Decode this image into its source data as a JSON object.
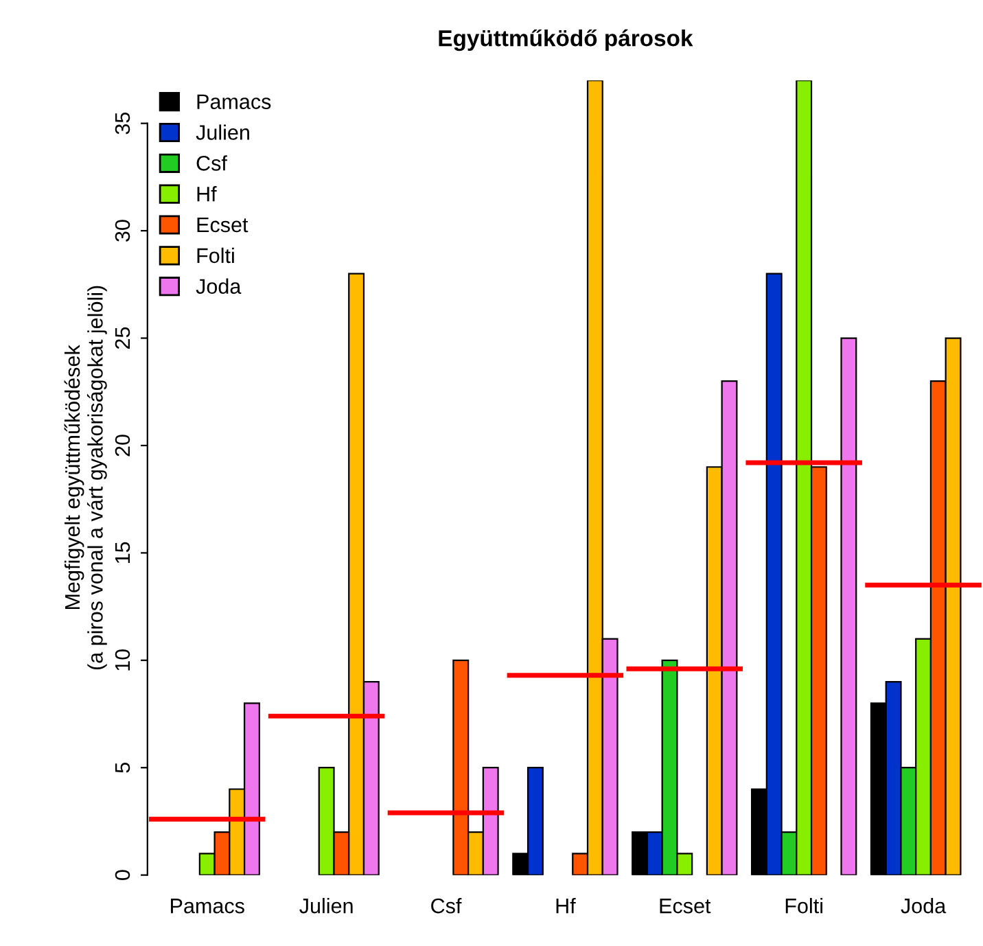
{
  "chart_data": {
    "type": "bar",
    "title": "Együttműködő párosok",
    "ylabel": "Megfigyelt együttműködések\n(a piros vonal a várt gyakoriságokat jelöli)",
    "categories": [
      "Pamacs",
      "Julien",
      "Csf",
      "Hf",
      "Ecset",
      "Folti",
      "Joda"
    ],
    "series": [
      {
        "name": "Pamacs",
        "color": "#000000",
        "values": [
          0,
          0,
          0,
          1,
          2,
          4,
          8
        ]
      },
      {
        "name": "Julien",
        "color": "#0033cc",
        "values": [
          0,
          0,
          0,
          5,
          2,
          28,
          9
        ]
      },
      {
        "name": "Csf",
        "color": "#22cc22",
        "values": [
          0,
          0,
          0,
          0,
          10,
          2,
          5
        ]
      },
      {
        "name": "Hf",
        "color": "#88ee00",
        "values": [
          1,
          5,
          0,
          0,
          1,
          37,
          11
        ]
      },
      {
        "name": "Ecset",
        "color": "#ff5500",
        "values": [
          2,
          2,
          10,
          1,
          0,
          19,
          23
        ]
      },
      {
        "name": "Folti",
        "color": "#ffbb00",
        "values": [
          4,
          28,
          2,
          37,
          19,
          0,
          25
        ]
      },
      {
        "name": "Joda",
        "color": "#ee77ee",
        "values": [
          8,
          9,
          5,
          11,
          23,
          25,
          0
        ]
      }
    ],
    "ref_lines": [
      {
        "axis": "y",
        "value": 2.6,
        "color": "#ff0000"
      },
      {
        "axis": "y",
        "value": 7.4,
        "color": "#ff0000"
      },
      {
        "axis": "y",
        "value": 2.9,
        "color": "#ff0000"
      },
      {
        "axis": "y",
        "value": 9.3,
        "color": "#ff0000"
      },
      {
        "axis": "y",
        "value": 9.6,
        "color": "#ff0000"
      },
      {
        "axis": "y",
        "value": 19.2,
        "color": "#ff0000"
      },
      {
        "axis": "y",
        "value": 13.5,
        "color": "#ff0000"
      }
    ],
    "ylim": [
      0,
      37
    ],
    "yticks": [
      0,
      5,
      10,
      15,
      20,
      25,
      30,
      35
    ],
    "grid": false,
    "legend": "top left"
  }
}
